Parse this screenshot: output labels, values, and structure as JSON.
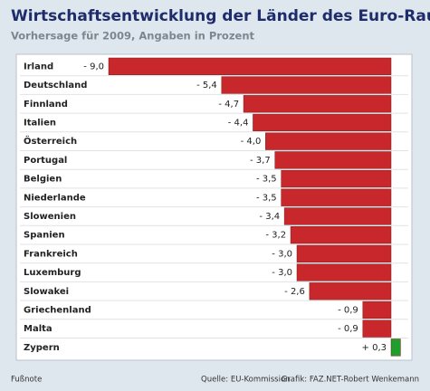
{
  "chart_data": {
    "type": "bar",
    "orientation": "horizontal",
    "title": "Wirtschaftsentwicklung der Länder des Euro-Raumes",
    "subtitle": "Vorhersage für 2009, Angaben in Prozent",
    "categories": [
      "Irland",
      "Deutschland",
      "Finnland",
      "Italien",
      "Österreich",
      "Portugal",
      "Belgien",
      "Niederlande",
      "Slowenien",
      "Spanien",
      "Frankreich",
      "Luxemburg",
      "Slowakei",
      "Griechenland",
      "Malta",
      "Zypern"
    ],
    "values": [
      -9.0,
      -5.4,
      -4.7,
      -4.4,
      -4.0,
      -3.7,
      -3.5,
      -3.5,
      -3.4,
      -3.2,
      -3.0,
      -3.0,
      -2.6,
      -0.9,
      -0.9,
      0.3
    ],
    "value_labels": [
      "- 9,0",
      "- 5,4",
      "- 4,7",
      "- 4,4",
      "- 4,0",
      "- 3,7",
      "- 3,5",
      "- 3,5",
      "- 3,4",
      "- 3,2",
      "- 3,0",
      "- 3,0",
      "- 2,6",
      "- 0,9",
      "- 0,9",
      "+ 0,3"
    ],
    "colors": [
      "#c8282c",
      "#c8282c",
      "#c8282c",
      "#c8282c",
      "#c8282c",
      "#c8282c",
      "#c8282c",
      "#c8282c",
      "#c8282c",
      "#c8282c",
      "#c8282c",
      "#c8282c",
      "#c8282c",
      "#c8282c",
      "#c8282c",
      "#1f9e2c"
    ],
    "footnote": "Fußnote",
    "source": "Quelle: EU-Kommission",
    "credit": "Grafik: FAZ.NET-Robert Wenkemann"
  }
}
